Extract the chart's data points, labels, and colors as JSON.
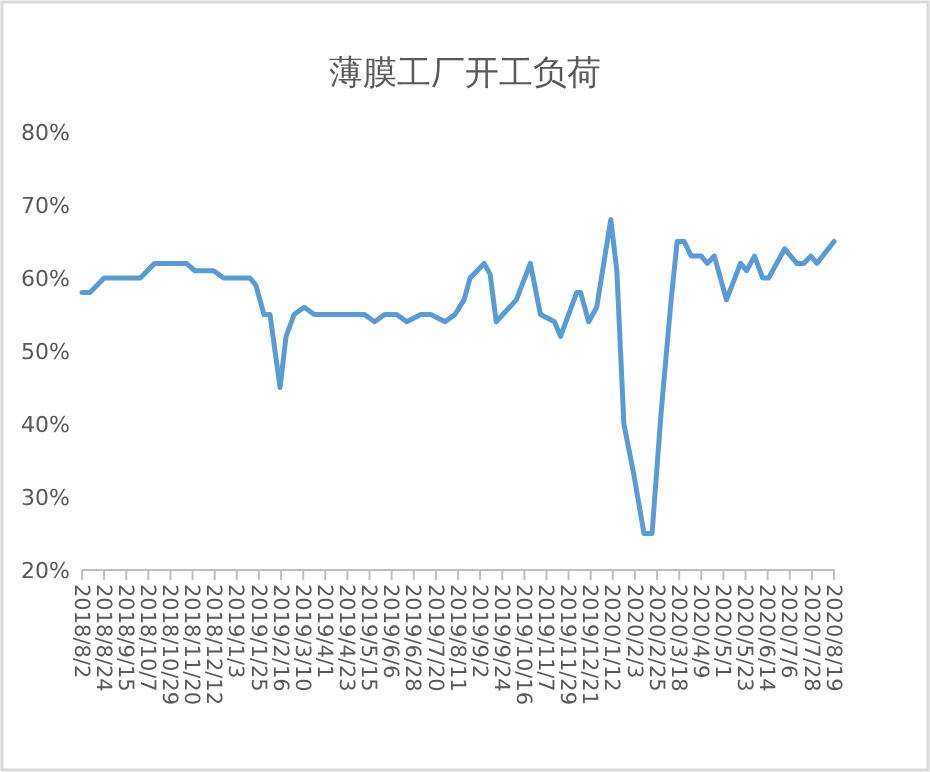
{
  "chart_data": {
    "type": "line",
    "title": "薄膜工厂开工负荷",
    "x": [
      "2018-08-02",
      "2018-08-10",
      "2018-08-24",
      "2018-09-29",
      "2018-10-13",
      "2018-11-14",
      "2018-11-22",
      "2018-12-11",
      "2018-12-21",
      "2019-01-16",
      "2019-01-22",
      "2019-01-30",
      "2019-02-05",
      "2019-02-15",
      "2019-02-21",
      "2019-03-01",
      "2019-03-11",
      "2019-03-21",
      "2019-05-10",
      "2019-05-20",
      "2019-05-30",
      "2019-06-11",
      "2019-06-21",
      "2019-07-05",
      "2019-07-15",
      "2019-07-29",
      "2019-08-08",
      "2019-08-17",
      "2019-08-23",
      "2019-09-06",
      "2019-09-12",
      "2019-09-18",
      "2019-10-08",
      "2019-10-22",
      "2019-11-01",
      "2019-11-15",
      "2019-11-21",
      "2019-12-07",
      "2019-12-11",
      "2019-12-19",
      "2019-12-27",
      "2020-01-10",
      "2020-01-16",
      "2020-01-23",
      "2020-02-02",
      "2020-02-12",
      "2020-02-20",
      "2020-02-29",
      "2020-03-10",
      "2020-03-16",
      "2020-03-23",
      "2020-03-30",
      "2020-04-09",
      "2020-04-15",
      "2020-04-22",
      "2020-05-04",
      "2020-05-18",
      "2020-05-24",
      "2020-06-01",
      "2020-06-09",
      "2020-06-15",
      "2020-07-01",
      "2020-07-13",
      "2020-07-20",
      "2020-07-27",
      "2020-08-02",
      "2020-08-19"
    ],
    "series": [
      {
        "color": "#5b9bd5",
        "values": [
          58,
          58,
          60,
          60,
          62,
          62,
          61,
          61,
          60,
          60,
          59,
          55,
          55,
          45,
          52,
          55,
          56,
          55,
          55,
          54,
          55,
          55,
          54,
          55,
          55,
          54,
          55,
          57,
          60,
          62,
          60.5,
          54,
          57,
          62,
          55,
          54,
          52,
          58,
          58,
          54,
          56,
          68,
          61,
          40,
          33,
          25,
          25,
          41.5,
          57,
          65,
          65,
          63,
          63,
          62,
          63,
          57,
          62,
          61,
          63,
          60,
          60,
          64,
          62,
          62,
          63,
          62,
          65
        ]
      }
    ],
    "xlim": [
      "2018-08-02",
      "2020-08-19"
    ],
    "xticks": [
      {
        "value": "2018-08-02",
        "label": "2018/8/2"
      },
      {
        "value": "2018-08-24",
        "label": "2018/8/24"
      },
      {
        "value": "2018-09-15",
        "label": "2018/9/15"
      },
      {
        "value": "2018-10-07",
        "label": "2018/10/7"
      },
      {
        "value": "2018-10-29",
        "label": "2018/10/29"
      },
      {
        "value": "2018-11-20",
        "label": "2018/11/20"
      },
      {
        "value": "2018-12-12",
        "label": "2018/12/12"
      },
      {
        "value": "2019-01-03",
        "label": "2019/1/3"
      },
      {
        "value": "2019-01-25",
        "label": "2019/1/25"
      },
      {
        "value": "2019-02-16",
        "label": "2019/2/16"
      },
      {
        "value": "2019-03-10",
        "label": "2019/3/10"
      },
      {
        "value": "2019-04-01",
        "label": "2019/4/1"
      },
      {
        "value": "2019-04-23",
        "label": "2019/4/23"
      },
      {
        "value": "2019-05-15",
        "label": "2019/5/15"
      },
      {
        "value": "2019-06-06",
        "label": "2019/6/6"
      },
      {
        "value": "2019-06-28",
        "label": "2019/6/28"
      },
      {
        "value": "2019-07-20",
        "label": "2019/7/20"
      },
      {
        "value": "2019-08-11",
        "label": "2019/8/11"
      },
      {
        "value": "2019-09-02",
        "label": "2019/9/2"
      },
      {
        "value": "2019-09-24",
        "label": "2019/9/24"
      },
      {
        "value": "2019-10-16",
        "label": "2019/10/16"
      },
      {
        "value": "2019-11-07",
        "label": "2019/11/7"
      },
      {
        "value": "2019-11-29",
        "label": "2019/11/29"
      },
      {
        "value": "2019-12-21",
        "label": "2019/12/21"
      },
      {
        "value": "2020-01-12",
        "label": "2020/1/12"
      },
      {
        "value": "2020-02-03",
        "label": "2020/2/3"
      },
      {
        "value": "2020-02-25",
        "label": "2020/2/25"
      },
      {
        "value": "2020-03-18",
        "label": "2020/3/18"
      },
      {
        "value": "2020-04-09",
        "label": "2020/4/9"
      },
      {
        "value": "2020-05-01",
        "label": "2020/5/1"
      },
      {
        "value": "2020-05-23",
        "label": "2020/5/23"
      },
      {
        "value": "2020-06-14",
        "label": "2020/6/14"
      },
      {
        "value": "2020-07-06",
        "label": "2020/7/6"
      },
      {
        "value": "2020-07-28",
        "label": "2020/7/28"
      },
      {
        "value": "2020-08-19",
        "label": "2020/8/19"
      }
    ],
    "ylim": [
      20,
      80
    ],
    "yticks": [
      {
        "value": 20,
        "label": "20%"
      },
      {
        "value": 30,
        "label": "30%"
      },
      {
        "value": 40,
        "label": "40%"
      },
      {
        "value": 50,
        "label": "50%"
      },
      {
        "value": 60,
        "label": "60%"
      },
      {
        "value": 70,
        "label": "70%"
      },
      {
        "value": 80,
        "label": "80%"
      }
    ],
    "grid": false
  }
}
